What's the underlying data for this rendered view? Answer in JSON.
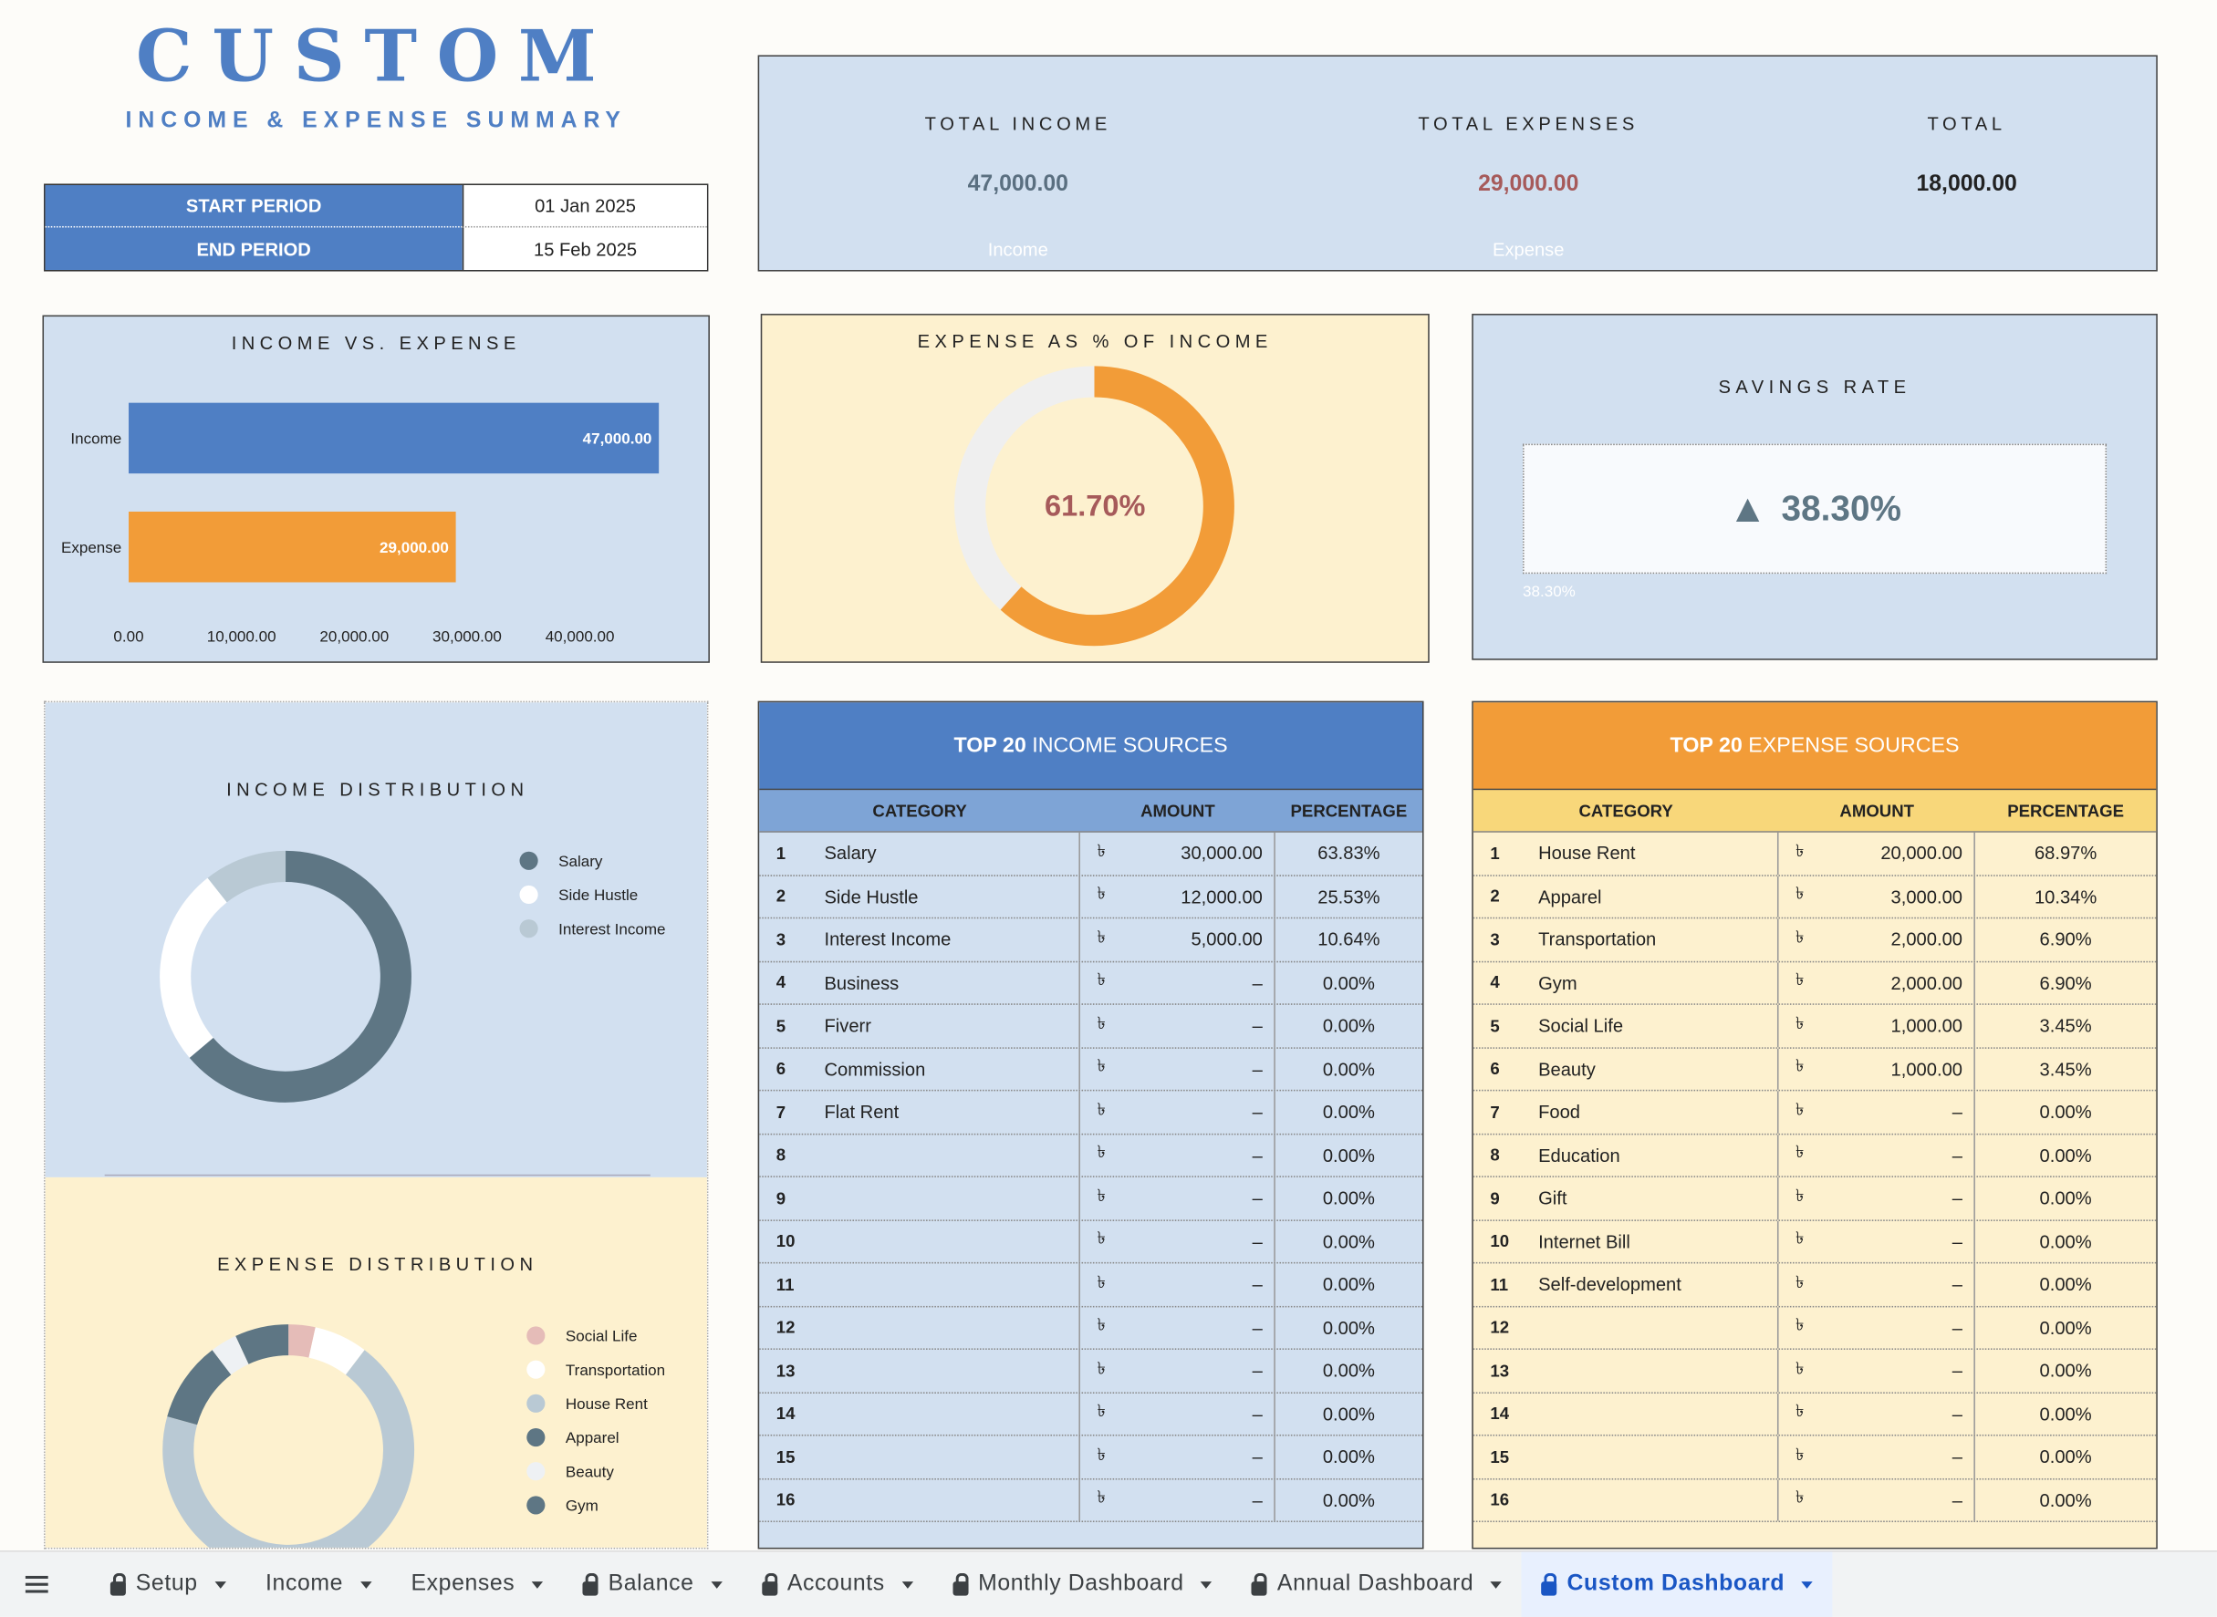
{
  "header": {
    "title": "CUSTOM",
    "subtitle": "INCOME & EXPENSE SUMMARY"
  },
  "period": {
    "start_label": "START PERIOD",
    "start_value": "01 Jan 2025",
    "end_label": "END PERIOD",
    "end_value": "15 Feb 2025"
  },
  "totals": {
    "income_label": "TOTAL INCOME",
    "income_value": "47,000.00",
    "income_ghost": "Income",
    "expense_label": "TOTAL EXPENSES",
    "expense_value": "29,000.00",
    "expense_ghost": "Expense",
    "total_label": "TOTAL",
    "total_value": "18,000.00"
  },
  "colors": {
    "blue": "#4f7fc4",
    "orange": "#f29c38",
    "income_text": "#5a6f80",
    "expense_text": "#a65a5a",
    "slate": "#5e7684"
  },
  "income_vs_expense": {
    "title": "INCOME VS. EXPENSE",
    "chart_data": {
      "type": "bar",
      "orientation": "horizontal",
      "categories": [
        "Income",
        "Expense"
      ],
      "values": [
        47000,
        29000
      ],
      "value_labels": [
        "47,000.00",
        "29,000.00"
      ],
      "xlim": [
        0,
        47000
      ],
      "ticks": [
        0,
        10000,
        20000,
        30000,
        40000
      ],
      "tick_labels": [
        "0.00",
        "10,000.00",
        "20,000.00",
        "30,000.00",
        "40,000.00"
      ]
    }
  },
  "expense_pct": {
    "title": "EXPENSE AS % OF INCOME",
    "value_label": "61.70%",
    "chart_data": {
      "type": "pie",
      "values": [
        61.7,
        38.3
      ]
    }
  },
  "savings": {
    "title": "SAVINGS RATE",
    "value": "38.30%",
    "arrow": "▲",
    "ghost": "38.30%",
    "arrow_icon": "triangle-up-icon"
  },
  "income_distribution": {
    "title": "INCOME DISTRIBUTION",
    "chart_data": {
      "type": "pie",
      "series": [
        {
          "name": "Salary",
          "value": 30000,
          "color": "#5e7684"
        },
        {
          "name": "Side Hustle",
          "value": 12000,
          "color": "#ffffff"
        },
        {
          "name": "Interest Income",
          "value": 5000,
          "color": "#b9c9d4"
        }
      ]
    }
  },
  "expense_distribution": {
    "title": "EXPENSE DISTRIBUTION",
    "chart_data": {
      "type": "pie",
      "series": [
        {
          "name": "Social Life",
          "value": 1000,
          "color": "#e5bcb8"
        },
        {
          "name": "Transportation",
          "value": 2000,
          "color": "#ffffff"
        },
        {
          "name": "House Rent",
          "value": 20000,
          "color": "#b9c9d4"
        },
        {
          "name": "Apparel",
          "value": 3000,
          "color": "#5e7684"
        },
        {
          "name": "Beauty",
          "value": 1000,
          "color": "#eef1f4"
        },
        {
          "name": "Gym",
          "value": 2000,
          "color": "#5e7684"
        }
      ]
    }
  },
  "income_table": {
    "title_bold": "TOP 20",
    "title_rest": " INCOME SOURCES",
    "columns": [
      "CATEGORY",
      "AMOUNT",
      "PERCENTAGE"
    ],
    "currency": "৳",
    "rows": [
      {
        "n": "1",
        "cat": "Salary",
        "amt": "30,000.00",
        "pct": "63.83%"
      },
      {
        "n": "2",
        "cat": "Side Hustle",
        "amt": "12,000.00",
        "pct": "25.53%"
      },
      {
        "n": "3",
        "cat": "Interest Income",
        "amt": "5,000.00",
        "pct": "10.64%"
      },
      {
        "n": "4",
        "cat": "Business",
        "amt": "–",
        "pct": "0.00%"
      },
      {
        "n": "5",
        "cat": "Fiverr",
        "amt": "–",
        "pct": "0.00%"
      },
      {
        "n": "6",
        "cat": "Commission",
        "amt": "–",
        "pct": "0.00%"
      },
      {
        "n": "7",
        "cat": "Flat Rent",
        "amt": "–",
        "pct": "0.00%"
      },
      {
        "n": "8",
        "cat": "",
        "amt": "–",
        "pct": "0.00%"
      },
      {
        "n": "9",
        "cat": "",
        "amt": "–",
        "pct": "0.00%"
      },
      {
        "n": "10",
        "cat": "",
        "amt": "–",
        "pct": "0.00%"
      },
      {
        "n": "11",
        "cat": "",
        "amt": "–",
        "pct": "0.00%"
      },
      {
        "n": "12",
        "cat": "",
        "amt": "–",
        "pct": "0.00%"
      },
      {
        "n": "13",
        "cat": "",
        "amt": "–",
        "pct": "0.00%"
      },
      {
        "n": "14",
        "cat": "",
        "amt": "–",
        "pct": "0.00%"
      },
      {
        "n": "15",
        "cat": "",
        "amt": "–",
        "pct": "0.00%"
      },
      {
        "n": "16",
        "cat": "",
        "amt": "–",
        "pct": "0.00%"
      }
    ]
  },
  "expense_table": {
    "title_bold": "TOP 20",
    "title_rest": " EXPENSE SOURCES",
    "columns": [
      "CATEGORY",
      "AMOUNT",
      "PERCENTAGE"
    ],
    "currency": "৳",
    "rows": [
      {
        "n": "1",
        "cat": "House Rent",
        "amt": "20,000.00",
        "pct": "68.97%"
      },
      {
        "n": "2",
        "cat": "Apparel",
        "amt": "3,000.00",
        "pct": "10.34%"
      },
      {
        "n": "3",
        "cat": "Transportation",
        "amt": "2,000.00",
        "pct": "6.90%"
      },
      {
        "n": "4",
        "cat": "Gym",
        "amt": "2,000.00",
        "pct": "6.90%"
      },
      {
        "n": "5",
        "cat": "Social Life",
        "amt": "1,000.00",
        "pct": "3.45%"
      },
      {
        "n": "6",
        "cat": "Beauty",
        "amt": "1,000.00",
        "pct": "3.45%"
      },
      {
        "n": "7",
        "cat": "Food",
        "amt": "–",
        "pct": "0.00%"
      },
      {
        "n": "8",
        "cat": "Education",
        "amt": "–",
        "pct": "0.00%"
      },
      {
        "n": "9",
        "cat": "Gift",
        "amt": "–",
        "pct": "0.00%"
      },
      {
        "n": "10",
        "cat": "Internet Bill",
        "amt": "–",
        "pct": "0.00%"
      },
      {
        "n": "11",
        "cat": "Self-development",
        "amt": "–",
        "pct": "0.00%"
      },
      {
        "n": "12",
        "cat": "",
        "amt": "–",
        "pct": "0.00%"
      },
      {
        "n": "13",
        "cat": "",
        "amt": "–",
        "pct": "0.00%"
      },
      {
        "n": "14",
        "cat": "",
        "amt": "–",
        "pct": "0.00%"
      },
      {
        "n": "15",
        "cat": "",
        "amt": "–",
        "pct": "0.00%"
      },
      {
        "n": "16",
        "cat": "",
        "amt": "–",
        "pct": "0.00%"
      }
    ]
  },
  "tabs": [
    {
      "label": "Setup",
      "locked": true,
      "active": false
    },
    {
      "label": "Income",
      "locked": false,
      "active": false
    },
    {
      "label": "Expenses",
      "locked": false,
      "active": false
    },
    {
      "label": "Balance",
      "locked": true,
      "active": false
    },
    {
      "label": "Accounts",
      "locked": true,
      "active": false
    },
    {
      "label": "Monthly Dashboard",
      "locked": true,
      "active": false
    },
    {
      "label": "Annual Dashboard",
      "locked": true,
      "active": false
    },
    {
      "label": "Custom Dashboard",
      "locked": true,
      "active": true
    }
  ]
}
